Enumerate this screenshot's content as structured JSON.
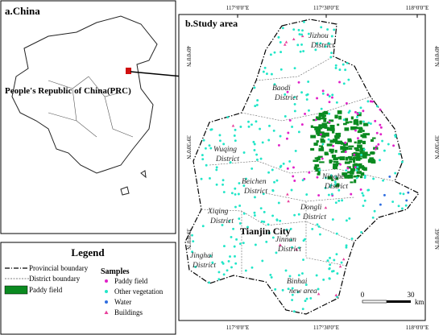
{
  "panel_a": {
    "title": "a.China",
    "label": "People's Republic of China(PRC)"
  },
  "panel_b": {
    "title": "b.Study area",
    "lon_ticks": [
      "117°0'0\"E",
      "117°30'0\"E",
      "118°0'0\"E"
    ],
    "lat_ticks": [
      "40°0'0\"N",
      "39°30'0\"N",
      "39°0'0\"N"
    ],
    "districts": [
      {
        "name": "Jizhou",
        "suffix": "District"
      },
      {
        "name": "Baodi",
        "suffix": "District"
      },
      {
        "name": "Wuqing",
        "suffix": "District"
      },
      {
        "name": "Ninghe",
        "suffix": "District"
      },
      {
        "name": "Beichen",
        "suffix": "District"
      },
      {
        "name": "Dongli",
        "suffix": "District"
      },
      {
        "name": "Xiqing",
        "suffix": "District"
      },
      {
        "name": "Jinnan",
        "suffix": "District"
      },
      {
        "name": "Jinghai",
        "suffix": "District"
      },
      {
        "name": "Binhai",
        "suffix": "new area"
      }
    ],
    "city": "Tianjin City",
    "scale": {
      "start": "0",
      "end": "30",
      "unit": "km"
    }
  },
  "legend": {
    "title": "Legend",
    "boundaries": [
      "Provincial boundary",
      "District  boundary",
      "Paddy field"
    ],
    "samples_title": "Samples",
    "samples": [
      {
        "name": "Paddy field",
        "color": "#e020c8"
      },
      {
        "name": "Other vegetation",
        "color": "#22e6c8"
      },
      {
        "name": "Water",
        "color": "#2f6ee0"
      },
      {
        "name": "Buildings",
        "color": "#e8409c"
      }
    ]
  }
}
